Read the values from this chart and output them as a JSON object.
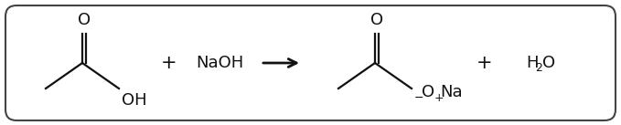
{
  "background_color": "#ffffff",
  "border_color": "#444444",
  "border_linewidth": 1.5,
  "line_color": "#111111",
  "text_color": "#111111",
  "fig_width": 6.79,
  "fig_height": 1.37,
  "dpi": 100,
  "acetic_acid_o_label": "O",
  "acetic_acid_oh_label": "OH",
  "naoh_label": "NaOH",
  "sodium_acetate_o_label": "O",
  "sodium_acetate_o_minus": "−",
  "sodium_acetate_na_plus": "+",
  "sodium_acetate_na_label": "Na",
  "plus_label": "+",
  "water_h": "H",
  "water_2": "2",
  "water_o": "O"
}
